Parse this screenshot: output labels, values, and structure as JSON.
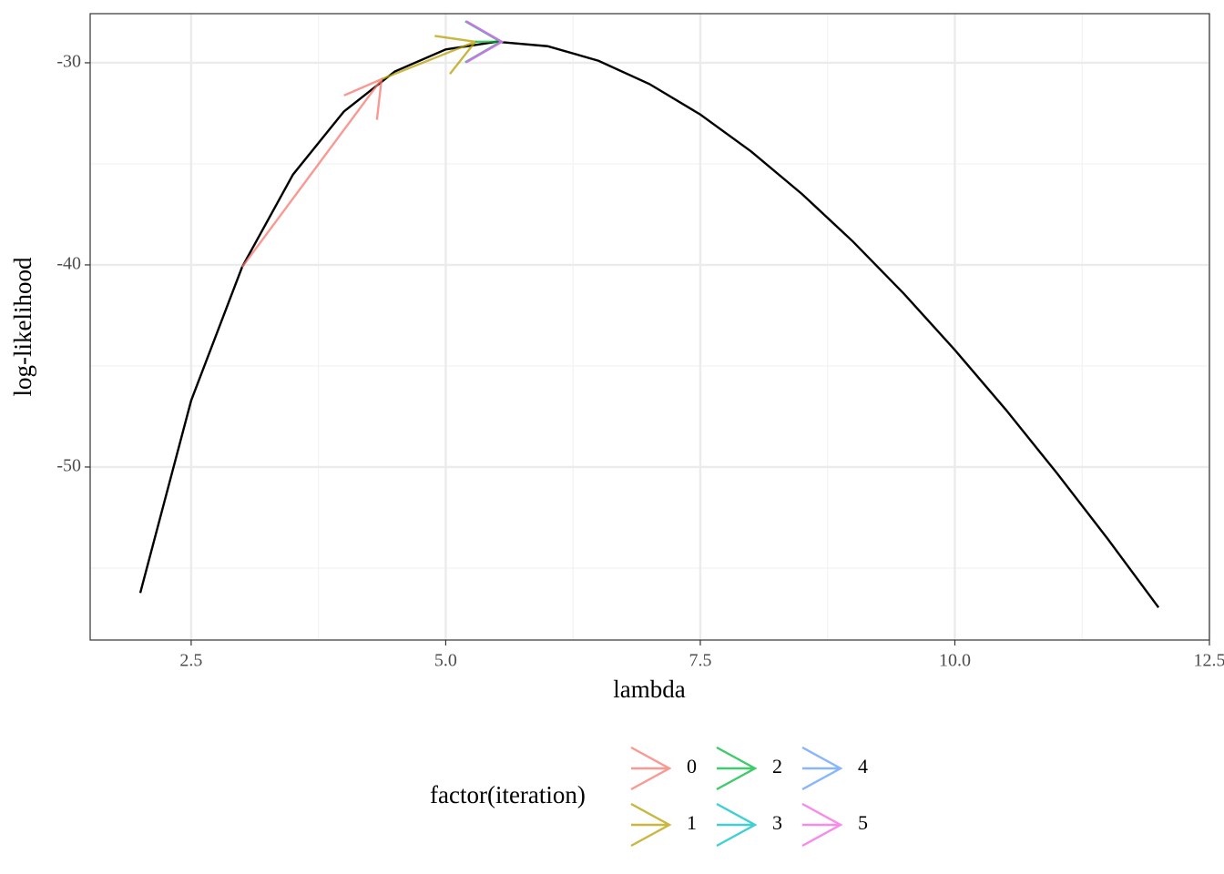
{
  "chart_data": {
    "type": "line",
    "x_label": "lambda",
    "y_label": "log-likelihood",
    "x": [
      2,
      2.5,
      3,
      3.5,
      4,
      4.5,
      5,
      5.5,
      6,
      6.5,
      7,
      7.5,
      8,
      8.5,
      9,
      9.5,
      10,
      10.5,
      11,
      11.5,
      12
    ],
    "series": [
      {
        "color": "#000000",
        "values": [
          -56.23,
          -46.71,
          -40.11,
          -35.53,
          -32.41,
          -30.43,
          -29.34,
          -28.96,
          -29.18,
          -29.9,
          -31.05,
          -32.56,
          -34.39,
          -36.5,
          -38.85,
          -41.43,
          -44.21,
          -47.16,
          -50.29,
          -53.55,
          -56.95
        ]
      }
    ],
    "xlim": [
      1.508,
      12.5
    ],
    "ylim": [
      -58.56,
      -27.57
    ],
    "xticks": [
      2.5,
      {
        "value": 5,
        "label": "5.0"
      },
      7.5,
      {
        "value": 10,
        "label": "10.0"
      },
      12.5
    ],
    "yticks": [
      -50,
      -40,
      -30
    ],
    "x_minor_grid": [
      3.75,
      6.25,
      8.75,
      11.25
    ],
    "y_minor_grid": [
      -55,
      -45,
      -35
    ],
    "grid": true,
    "legend_position": "bottom",
    "arrows": {
      "legend_title": "factor(iteration)",
      "names": [
        "0",
        "1",
        "2",
        "3",
        "4",
        "5"
      ],
      "colors": [
        "#F8766D",
        "#B79F00",
        "#00BA38",
        "#00BFC4",
        "#619CFF",
        "#F564E3"
      ],
      "x_start": [
        3,
        4.37,
        5.29,
        5.54,
        5.55,
        5.55
      ],
      "y_start": [
        -40.11,
        -30.81,
        -28.96,
        -28.96,
        -28.96,
        -28.96
      ],
      "x_end": [
        4.37,
        5.29,
        5.54,
        5.55,
        5.55,
        5.55
      ],
      "y_end": [
        -30.81,
        -28.96,
        -28.96,
        -28.96,
        -28.96,
        -28.96
      ]
    }
  }
}
